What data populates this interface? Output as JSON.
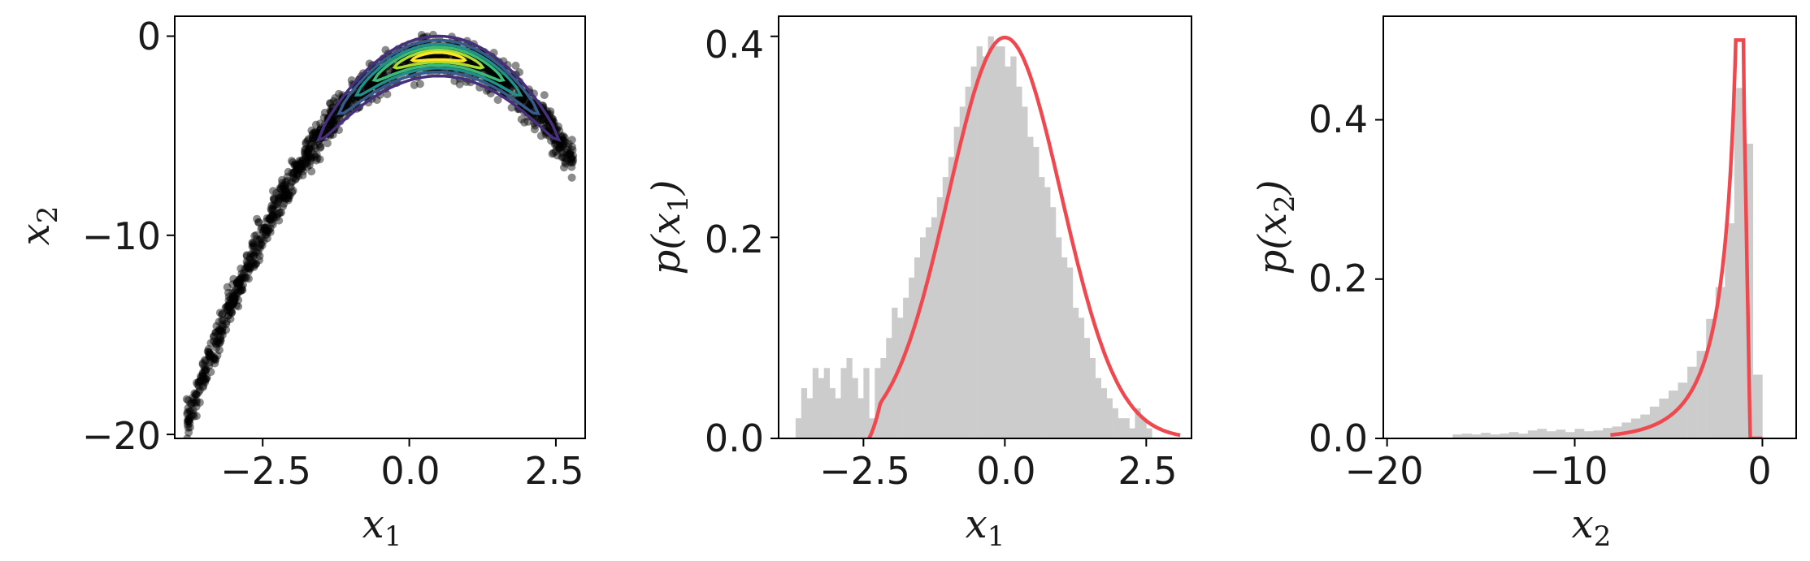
{
  "chart_data": [
    {
      "type": "scatter",
      "xlabel": "x1",
      "ylabel": "x2",
      "xlim": [
        -4.0,
        3.0
      ],
      "ylim": [
        -20.2,
        1.0
      ],
      "xticks": [
        -2.5,
        0.0,
        2.5
      ],
      "xtick_labels": [
        "−2.5",
        "0.0",
        "2.5"
      ],
      "yticks": [
        0,
        -10,
        -20
      ],
      "ytick_labels": [
        "0",
        "−10",
        "−20"
      ],
      "scatter_model": "x2 = -(x1-0.5)^2 - 1 + noise, x1 in [-3.8, 2.8]",
      "point_color": "#000000",
      "contours": [
        {
          "level": 1,
          "halfwidth": 2.05,
          "thickness": 1.0,
          "color": "#46307e"
        },
        {
          "level": 2,
          "halfwidth": 1.7,
          "thickness": 0.8,
          "color": "#365c8d"
        },
        {
          "level": 3,
          "halfwidth": 1.4,
          "thickness": 0.6,
          "color": "#21908c"
        },
        {
          "level": 4,
          "halfwidth": 1.1,
          "thickness": 0.45,
          "color": "#3bbb75"
        },
        {
          "level": 5,
          "halfwidth": 0.75,
          "thickness": 0.3,
          "color": "#aadc32"
        },
        {
          "level": 6,
          "halfwidth": 0.45,
          "thickness": 0.18,
          "color": "#fde725"
        }
      ]
    },
    {
      "type": "bar",
      "subtype": "histogram + density",
      "xlabel": "x1",
      "ylabel": "p(x1)",
      "xlim": [
        -4.0,
        3.3
      ],
      "ylim": [
        0,
        0.42
      ],
      "xticks": [
        -2.5,
        0.0,
        2.5
      ],
      "xtick_labels": [
        "−2.5",
        "0.0",
        "2.5"
      ],
      "yticks": [
        0.0,
        0.2,
        0.4
      ],
      "ytick_labels": [
        "0.0",
        "0.2",
        "0.4"
      ],
      "bin_start": -3.8,
      "bin_width": 0.1,
      "values": [
        0.0,
        0.02,
        0.05,
        0.04,
        0.07,
        0.06,
        0.07,
        0.05,
        0.04,
        0.07,
        0.08,
        0.06,
        0.04,
        0.07,
        0.02,
        0.07,
        0.08,
        0.1,
        0.13,
        0.12,
        0.14,
        0.16,
        0.18,
        0.2,
        0.21,
        0.22,
        0.24,
        0.26,
        0.28,
        0.31,
        0.33,
        0.35,
        0.37,
        0.39,
        0.38,
        0.4,
        0.39,
        0.39,
        0.37,
        0.38,
        0.35,
        0.33,
        0.3,
        0.29,
        0.26,
        0.25,
        0.23,
        0.2,
        0.18,
        0.17,
        0.13,
        0.12,
        0.1,
        0.08,
        0.06,
        0.05,
        0.04,
        0.03,
        0.02,
        0.02,
        0.01,
        0.03,
        0.02,
        0.01
      ],
      "bar_color": "#cccccc",
      "density": {
        "name": "",
        "model": "normal(0,1), truncated below x=-2.4",
        "x_range": [
          -2.4,
          3.1
        ],
        "color": "#f0484f"
      }
    },
    {
      "type": "bar",
      "subtype": "histogram + density",
      "xlabel": "x2",
      "ylabel": "p(x2)",
      "xlim": [
        -20.2,
        1.8
      ],
      "ylim": [
        0,
        0.53
      ],
      "xticks": [
        -20,
        -10,
        0
      ],
      "xtick_labels": [
        "−20",
        "−10",
        "0"
      ],
      "yticks": [
        0.0,
        0.2,
        0.4
      ],
      "ytick_labels": [
        "0.0",
        "0.2",
        "0.4"
      ],
      "bin_start": -17.0,
      "bin_width": 0.5,
      "values": [
        0.0,
        0.005,
        0.006,
        0.005,
        0.007,
        0.005,
        0.006,
        0.008,
        0.006,
        0.01,
        0.012,
        0.009,
        0.011,
        0.008,
        0.012,
        0.009,
        0.01,
        0.013,
        0.015,
        0.02,
        0.025,
        0.03,
        0.04,
        0.05,
        0.06,
        0.07,
        0.09,
        0.11,
        0.15,
        0.19,
        0.27,
        0.44,
        0.37,
        0.08,
        0.0
      ],
      "bar_color": "#cccccc",
      "density": {
        "name": "",
        "model": "x2 = -(x1^2) - 1 with x1 ~ N(0,1)",
        "x_range": [
          -8.1,
          0.0
        ],
        "peak": 0.5,
        "color": "#f0484f"
      }
    }
  ]
}
